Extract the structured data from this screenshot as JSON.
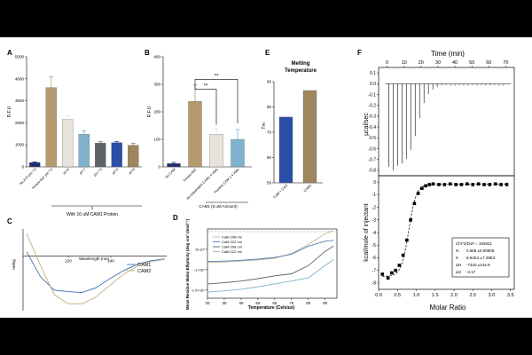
{
  "colors": {
    "background": "#000000",
    "panel": "#ffffff",
    "navy": "#1f2d6e",
    "tan": "#b59a6e",
    "cream": "#e8e3da",
    "lightblue": "#7fb2cc",
    "slate": "#5d6369",
    "royal": "#2a4fa8",
    "brown": "#9e865e",
    "curve_tan": "#c9b48a",
    "curve_blue": "#4f7fb8"
  },
  "chart_data": [
    {
      "panel": "A",
      "type": "bar",
      "ylabel": "R.F.U",
      "ylim": [
        0,
        5000
      ],
      "yticks": [
        "0",
        "1000",
        "2000",
        "3000",
        "4000",
        "5000"
      ],
      "categories": [
        "No ATP pH 7.5",
        "Kinase Buf. pH 7.5",
        "pH 6",
        "pH 7",
        "pH 7.5",
        "pH 8",
        "pH 9"
      ],
      "values": [
        200,
        3600,
        2150,
        1480,
        1080,
        1100,
        980
      ],
      "errors": [
        30,
        500,
        180,
        150,
        60,
        50,
        90
      ],
      "bar_colors": [
        "navy",
        "tan",
        "cream",
        "lightblue",
        "slate",
        "royal",
        "brown"
      ],
      "group_label": "With 10 uM CAM1 Protein"
    },
    {
      "panel": "B",
      "type": "bar",
      "ylabel": "R.F.U",
      "ylim": [
        0,
        400
      ],
      "yticks": [
        "0",
        "100",
        "200",
        "300",
        "400"
      ],
      "categories": [
        "No CAM",
        "Kinase Buf.",
        "Ab-Dependent CAM1 4 Vials",
        "Positive CAM 1 4 Vials"
      ],
      "values": [
        12,
        238,
        118,
        100
      ],
      "errors": [
        4,
        60,
        20,
        36
      ],
      "bar_colors": [
        "navy",
        "tan",
        "cream",
        "lightblue"
      ],
      "significance": [
        "**",
        "**"
      ],
      "group_label": "CAM1 (5 uM Amount)"
    },
    {
      "panel": "C",
      "type": "line",
      "ylabel": "mdeg",
      "xlabel": "Wavelength (nm)",
      "x": [
        200,
        205,
        210,
        215,
        220,
        225,
        230,
        235,
        240,
        245,
        250
      ],
      "xticks": [
        "220",
        "240"
      ],
      "ylim": [
        -12,
        6
      ],
      "series": [
        {
          "name": "CAM1",
          "color": "curve_blue",
          "values": [
            1,
            -4.5,
            -7.5,
            -7.8,
            -8.0,
            -7.0,
            -5.0,
            -3.2,
            -1.8,
            -1.0,
            -0.6
          ]
        },
        {
          "name": "CAM2",
          "color": "curve_tan",
          "values": [
            5,
            -2.0,
            -8.5,
            -10.5,
            -10.5,
            -9.0,
            -6.5,
            -4.0,
            -2.2,
            -1.2,
            -0.7
          ]
        }
      ]
    },
    {
      "panel": "D",
      "type": "line",
      "ylabel": "Mean Residue Molar Ellipticity (deg cm² dmol⁻¹)",
      "xlabel": "Temperature (Celsius)",
      "x": [
        20,
        30,
        40,
        50,
        60,
        70,
        80,
        90,
        95
      ],
      "xlim": [
        20,
        97
      ],
      "xticks": [
        "20",
        "30",
        "40",
        "50",
        "60",
        "70",
        "80",
        "90"
      ],
      "yticks": [
        "-5×10³",
        "-1×10⁴",
        "-1.5×10⁴"
      ],
      "ylim": [
        -17000,
        0
      ],
      "series": [
        {
          "name": "CaM 208 nm",
          "color": "curve_tan",
          "values": [
            -8200,
            -8100,
            -7900,
            -7600,
            -7200,
            -6000,
            -3800,
            -1200,
            -400
          ]
        },
        {
          "name": "CaM 222 nm",
          "color": "curve_blue",
          "values": [
            -8000,
            -7900,
            -7700,
            -7400,
            -7000,
            -6200,
            -4200,
            -3000,
            -2800
          ]
        },
        {
          "name": "CaM 208 nm",
          "color": "slate",
          "values": [
            -13500,
            -13200,
            -12800,
            -12200,
            -11500,
            -11000,
            -9000,
            -5500,
            -4200
          ]
        },
        {
          "name": "CaM 222 nm",
          "color": "lightblue",
          "values": [
            -15500,
            -15200,
            -14800,
            -14200,
            -13500,
            -12800,
            -12000,
            -9000,
            -7500
          ]
        }
      ]
    },
    {
      "panel": "E",
      "type": "bar",
      "title": "Melting Temperature",
      "ylabel": "Tm",
      "ylim": [
        50,
        90
      ],
      "yticks": [
        "50",
        "60",
        "70",
        "80",
        "90"
      ],
      "categories": [
        "CaM + CaCl",
        "CAM1"
      ],
      "values": [
        76,
        86.5
      ],
      "bar_colors": [
        "royal",
        "brown"
      ]
    },
    {
      "panel": "F",
      "type": "scatter",
      "top": {
        "xlabel": "Time (min)",
        "ylabel": "µcal/sec",
        "xticks": [
          "0",
          "10",
          "20",
          "30",
          "40",
          "50",
          "60",
          "70"
        ],
        "yticks": [
          "0.1",
          "0.0",
          "-0.1",
          "-0.2",
          "-0.3",
          "-0.4",
          "-0.5",
          "-0.6",
          "-0.7",
          "-0.8"
        ]
      },
      "xlabel": "Molar Ratio",
      "ylabel": "kcal/mole of injectant",
      "xlim": [
        0,
        3.6
      ],
      "ylim": [
        -8.5,
        0.5
      ],
      "xticks": [
        "0.0",
        "0.5",
        "1.0",
        "1.5",
        "2.0",
        "2.5",
        "3.0",
        "3.5"
      ],
      "yticks": [
        "0",
        "-1",
        "-2",
        "-3",
        "-4",
        "-5",
        "-6",
        "-7",
        "-8"
      ],
      "x": [
        0.1,
        0.25,
        0.35,
        0.45,
        0.55,
        0.65,
        0.75,
        0.85,
        0.95,
        1.05,
        1.15,
        1.25,
        1.35,
        1.45,
        1.6,
        1.75,
        1.9,
        2.05,
        2.2,
        2.35,
        2.5,
        2.65,
        2.8,
        2.95,
        3.1,
        3.25,
        3.4
      ],
      "y": [
        -7.3,
        -7.6,
        -7.2,
        -7.0,
        -6.6,
        -5.8,
        -4.6,
        -3.0,
        -1.7,
        -0.9,
        -0.5,
        -0.3,
        -0.2,
        -0.15,
        -0.2,
        -0.2,
        -0.15,
        -0.2,
        -0.2,
        -0.15,
        -0.2,
        -0.15,
        -0.2,
        -0.2,
        -0.15,
        -0.2,
        -0.2
      ],
      "fit_table": [
        {
          "label": "Chi^2/DoF",
          "value": "= 182921"
        },
        {
          "label": "N",
          "value": "0.668  ±0.00809"
        },
        {
          "label": "K",
          "value": "8.91E4 ±7.29E3"
        },
        {
          "label": "ΔH",
          "value": "-7420   ±144.9"
        },
        {
          "label": "ΔS",
          "value": "-2.17"
        }
      ]
    }
  ]
}
